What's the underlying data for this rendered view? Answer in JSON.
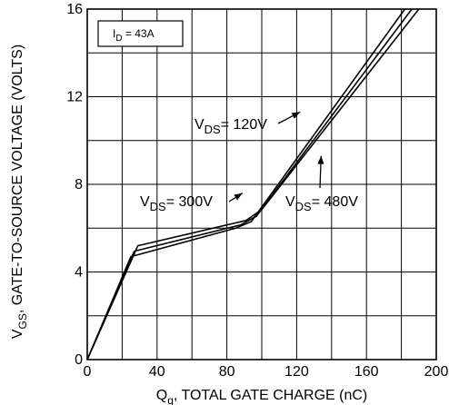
{
  "chart_data": {
    "type": "line",
    "title": "",
    "xlabel": {
      "main": "Q",
      "sub": "g",
      "rest": ", TOTAL GATE CHARGE (nC)"
    },
    "ylabel": {
      "main": "V",
      "sub": "GS",
      "rest": ", GATE-TO-SOURCE  VOLTAGE (VOLTS)"
    },
    "xlim": [
      0,
      200
    ],
    "ylim": [
      0,
      16
    ],
    "x_ticks": [
      0,
      40,
      80,
      120,
      160,
      200
    ],
    "y_ticks": [
      0,
      4,
      8,
      12,
      16
    ],
    "grid": true,
    "condition_box": {
      "main": "I",
      "sub": "D",
      "rest": " = 43A"
    },
    "series": [
      {
        "name": "VDS = 120V",
        "points": [
          [
            0,
            0
          ],
          [
            25,
            4.7
          ],
          [
            85,
            6.0
          ],
          [
            94,
            6.3
          ],
          [
            182,
            16
          ]
        ]
      },
      {
        "name": "VDS = 300V",
        "points": [
          [
            0,
            0
          ],
          [
            27,
            4.95
          ],
          [
            88,
            6.15
          ],
          [
            97,
            6.55
          ],
          [
            186,
            16
          ]
        ]
      },
      {
        "name": "VDS = 480V",
        "points": [
          [
            0,
            0
          ],
          [
            29,
            5.2
          ],
          [
            91,
            6.35
          ],
          [
            100,
            6.85
          ],
          [
            190,
            16
          ]
        ]
      }
    ],
    "annotations": [
      {
        "main": "V",
        "sub": "DS",
        "rest": "= 120V",
        "arrow_to": [
          122,
          11.3
        ]
      },
      {
        "main": "V",
        "sub": "DS",
        "rest": "= 300V",
        "arrow_to": [
          89,
          7.6
        ]
      },
      {
        "main": "V",
        "sub": "DS",
        "rest": "= 480V",
        "arrow_to": [
          134,
          9.3
        ]
      }
    ]
  }
}
